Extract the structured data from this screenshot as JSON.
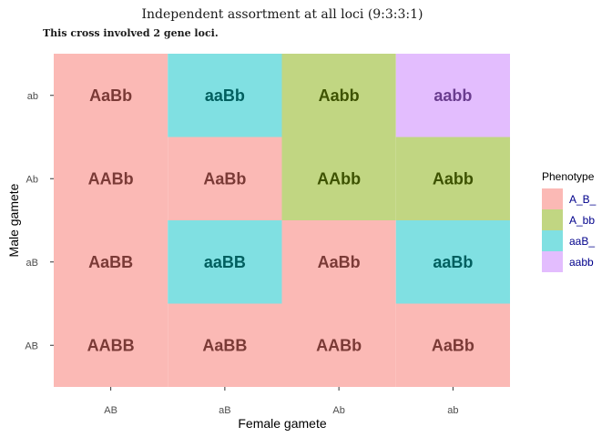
{
  "chart_data": {
    "type": "heatmap",
    "title": "Independent assortment at all loci (9:3:3:1)",
    "subtitle": "This cross involved 2 gene loci.",
    "xlabel": "Female gamete",
    "ylabel": "Male gamete",
    "x_categories": [
      "AB",
      "aB",
      "Ab",
      "ab"
    ],
    "y_categories": [
      "AB",
      "aB",
      "Ab",
      "ab"
    ],
    "grid": false,
    "legend": {
      "title": "Phenotype",
      "placement": "right",
      "entries": [
        {
          "label": "A_B_",
          "fill": "#fbb9b5",
          "text_color": "#7a3a36"
        },
        {
          "label": "A_bb",
          "fill": "#c1d682",
          "text_color": "#3d5200"
        },
        {
          "label": "aaB_",
          "fill": "#80e0e2",
          "text_color": "#005f5f"
        },
        {
          "label": "aabb",
          "fill": "#e3bdfe",
          "text_color": "#6a3d8f"
        }
      ]
    },
    "cells": [
      {
        "male": "ab",
        "female": "AB",
        "genotype": "AaBb",
        "phenotype": "A_B_"
      },
      {
        "male": "ab",
        "female": "aB",
        "genotype": "aaBb",
        "phenotype": "aaB_"
      },
      {
        "male": "ab",
        "female": "Ab",
        "genotype": "Aabb",
        "phenotype": "A_bb"
      },
      {
        "male": "ab",
        "female": "ab",
        "genotype": "aabb",
        "phenotype": "aabb"
      },
      {
        "male": "Ab",
        "female": "AB",
        "genotype": "AABb",
        "phenotype": "A_B_"
      },
      {
        "male": "Ab",
        "female": "aB",
        "genotype": "AaBb",
        "phenotype": "A_B_"
      },
      {
        "male": "Ab",
        "female": "Ab",
        "genotype": "AAbb",
        "phenotype": "A_bb"
      },
      {
        "male": "Ab",
        "female": "ab",
        "genotype": "Aabb",
        "phenotype": "A_bb"
      },
      {
        "male": "aB",
        "female": "AB",
        "genotype": "AaBB",
        "phenotype": "A_B_"
      },
      {
        "male": "aB",
        "female": "aB",
        "genotype": "aaBB",
        "phenotype": "aaB_"
      },
      {
        "male": "aB",
        "female": "Ab",
        "genotype": "AaBb",
        "phenotype": "A_B_"
      },
      {
        "male": "aB",
        "female": "ab",
        "genotype": "aaBb",
        "phenotype": "aaB_"
      },
      {
        "male": "AB",
        "female": "AB",
        "genotype": "AABB",
        "phenotype": "A_B_"
      },
      {
        "male": "AB",
        "female": "aB",
        "genotype": "AaBB",
        "phenotype": "A_B_"
      },
      {
        "male": "AB",
        "female": "Ab",
        "genotype": "AABb",
        "phenotype": "A_B_"
      },
      {
        "male": "AB",
        "female": "ab",
        "genotype": "AaBb",
        "phenotype": "A_B_"
      }
    ]
  }
}
